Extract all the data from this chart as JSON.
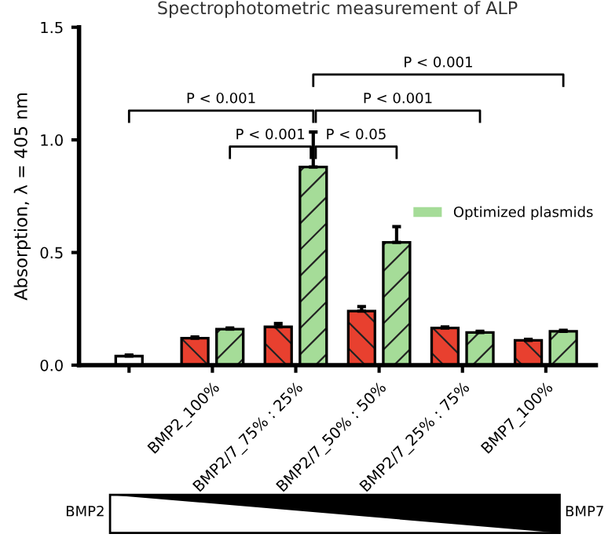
{
  "chart_data": {
    "type": "bar",
    "title": "Spectrophotometric measurement of ALP",
    "ylabel": "Absorption, λ = 405 nm",
    "categories": [
      null,
      "BMP2_100%",
      "BMP2/7_75% : 25%",
      "BMP2/7_50% : 50%",
      "BMP2/7_25% : 75%",
      "BMP7_100%"
    ],
    "series": [
      {
        "color": "#ffffff",
        "values": [
          0.04,
          null,
          null,
          null,
          null,
          null
        ],
        "errors": [
          0.005,
          null,
          null,
          null,
          null,
          null
        ]
      },
      {
        "color": "#e8402f",
        "values": [
          null,
          0.12,
          0.17,
          0.24,
          0.165,
          0.11
        ],
        "errors": [
          null,
          0.005,
          0.015,
          0.02,
          0.005,
          0.005
        ]
      },
      {
        "name": "Optimized plasmids",
        "color": "#a5dc98",
        "values": [
          null,
          0.16,
          0.88,
          0.545,
          0.145,
          0.15
        ],
        "errors": [
          null,
          0.005,
          0.155,
          0.07,
          0.005,
          0.005
        ]
      }
    ],
    "ylim": [
      0,
      1.5
    ],
    "yticks": [
      {
        "value": 0,
        "label": "0.0"
      },
      {
        "value": 0.5,
        "label": "0.5"
      },
      {
        "value": 1.0,
        "label": "1.0"
      },
      {
        "value": 1.5,
        "label": "1.5"
      }
    ],
    "grid": false,
    "legend": "right",
    "annotations": [
      "P < 0.001",
      "P < 0.001",
      "P < 0.001",
      "P < 0.001",
      "P < 0.05",
      "BMP2",
      "BMP7"
    ]
  }
}
